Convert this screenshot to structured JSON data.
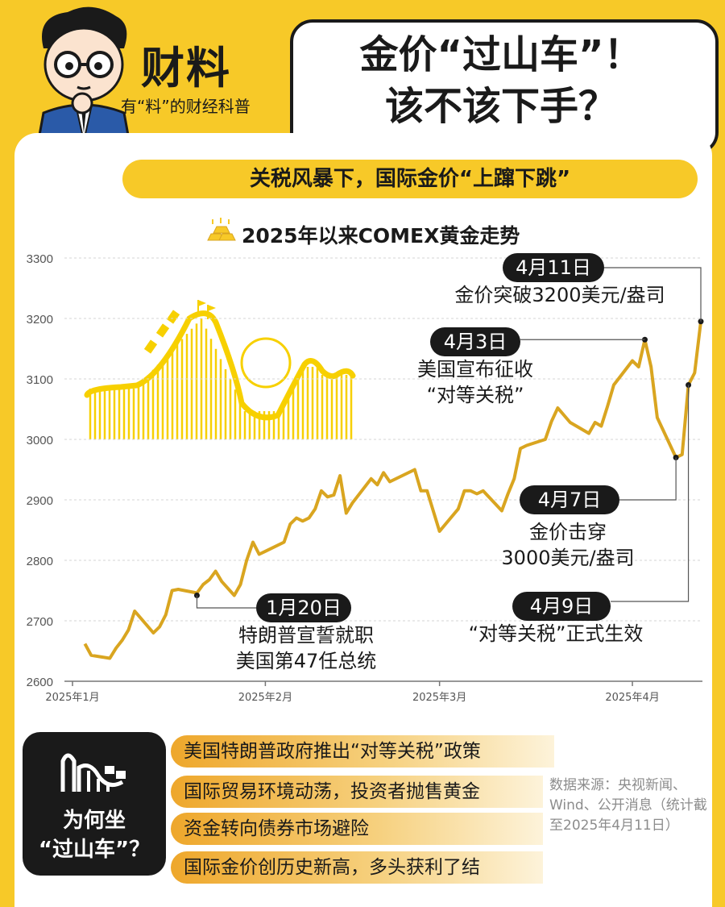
{
  "brand": {
    "name": "财料",
    "tagline": "有“料”的财经科普"
  },
  "headline": {
    "line1": "金价“过山车”！",
    "line2": "该不该下手？"
  },
  "banner": "关税风暴下，国际金价“上蹿下跳”",
  "chart_data": {
    "type": "line",
    "title": "2025年以来COMEX黄金走势",
    "ylim": [
      2600,
      3300
    ],
    "yticks": [
      "2600",
      "2700",
      "2800",
      "2900",
      "3000",
      "3100",
      "3200",
      "3300"
    ],
    "xtick_labels": [
      "2025年1月",
      "2025年2月",
      "2025年3月",
      "2025年4月"
    ],
    "xtick_days": [
      0,
      31,
      59,
      90
    ],
    "x_range_days": [
      0,
      101
    ],
    "grid": true,
    "line_color": "#d9a520",
    "series": [
      {
        "points": [
          [
            2,
            2662
          ],
          [
            3,
            2643
          ],
          [
            6,
            2638
          ],
          [
            7,
            2655
          ],
          [
            8,
            2668
          ],
          [
            9,
            2685
          ],
          [
            10,
            2716
          ],
          [
            13,
            2680
          ],
          [
            14,
            2690
          ],
          [
            15,
            2710
          ],
          [
            16,
            2750
          ],
          [
            17,
            2752
          ],
          [
            20,
            2746
          ],
          [
            21,
            2760
          ],
          [
            22,
            2768
          ],
          [
            23,
            2782
          ],
          [
            24,
            2765
          ],
          [
            26,
            2742
          ],
          [
            27,
            2760
          ],
          [
            28,
            2800
          ],
          [
            29,
            2830
          ],
          [
            30,
            2810
          ],
          [
            31,
            2815
          ],
          [
            34,
            2830
          ],
          [
            35,
            2860
          ],
          [
            36,
            2870
          ],
          [
            37,
            2865
          ],
          [
            38,
            2870
          ],
          [
            39,
            2885
          ],
          [
            40,
            2915
          ],
          [
            41,
            2905
          ],
          [
            42,
            2908
          ],
          [
            43,
            2940
          ],
          [
            44,
            2878
          ],
          [
            45,
            2895
          ],
          [
            48,
            2935
          ],
          [
            49,
            2925
          ],
          [
            50,
            2945
          ],
          [
            51,
            2930
          ],
          [
            55,
            2950
          ],
          [
            56,
            2915
          ],
          [
            57,
            2915
          ],
          [
            59,
            2848
          ],
          [
            62,
            2885
          ],
          [
            63,
            2915
          ],
          [
            64,
            2915
          ],
          [
            65,
            2910
          ],
          [
            66,
            2915
          ],
          [
            69,
            2882
          ],
          [
            70,
            2910
          ],
          [
            71,
            2935
          ],
          [
            72,
            2985
          ],
          [
            73,
            2990
          ],
          [
            76,
            3000
          ],
          [
            77,
            3030
          ],
          [
            78,
            3052
          ],
          [
            79,
            3040
          ],
          [
            80,
            3028
          ],
          [
            83,
            3010
          ],
          [
            84,
            3028
          ],
          [
            85,
            3022
          ],
          [
            86,
            3055
          ],
          [
            87,
            3090
          ],
          [
            90,
            3130
          ],
          [
            91,
            3120
          ],
          [
            92,
            3165
          ],
          [
            93,
            3120
          ],
          [
            94,
            3036
          ],
          [
            97,
            2970
          ],
          [
            98,
            2975
          ],
          [
            99,
            3090
          ],
          [
            100,
            3110
          ],
          [
            101,
            3195
          ]
        ]
      }
    ],
    "annotations": [
      {
        "date": "1月20日",
        "text": [
          "特朗普宣誓就职",
          "美国第47任总统"
        ],
        "x": 20,
        "y": 2742
      },
      {
        "date": "4月3日",
        "text": [
          "美国宣布征收",
          "“对等关税”"
        ],
        "x": 92,
        "y": 3165
      },
      {
        "date": "4月7日",
        "text": [
          "金价击穿",
          "3000美元/盎司"
        ],
        "x": 97,
        "y": 2970
      },
      {
        "date": "4月9日",
        "text": [
          "“对等关税”正式生效"
        ],
        "x": 99,
        "y": 3090
      },
      {
        "date": "4月11日",
        "text": [
          "金价突破3200美元/盎司"
        ],
        "x": 101,
        "y": 3195
      }
    ]
  },
  "why": {
    "title_line1": "为何坐",
    "title_line2": "“过山车”？"
  },
  "reasons": [
    "美国特朗普政府推出“对等关税”政策",
    "国际贸易环境动荡，投资者抛售黄金",
    "资金转向债券市场避险",
    "国际金价创历史新高，多头获利了结"
  ],
  "source": "数据来源：央视新闻、Wind、公开消息（统计截至2025年4月11日）"
}
